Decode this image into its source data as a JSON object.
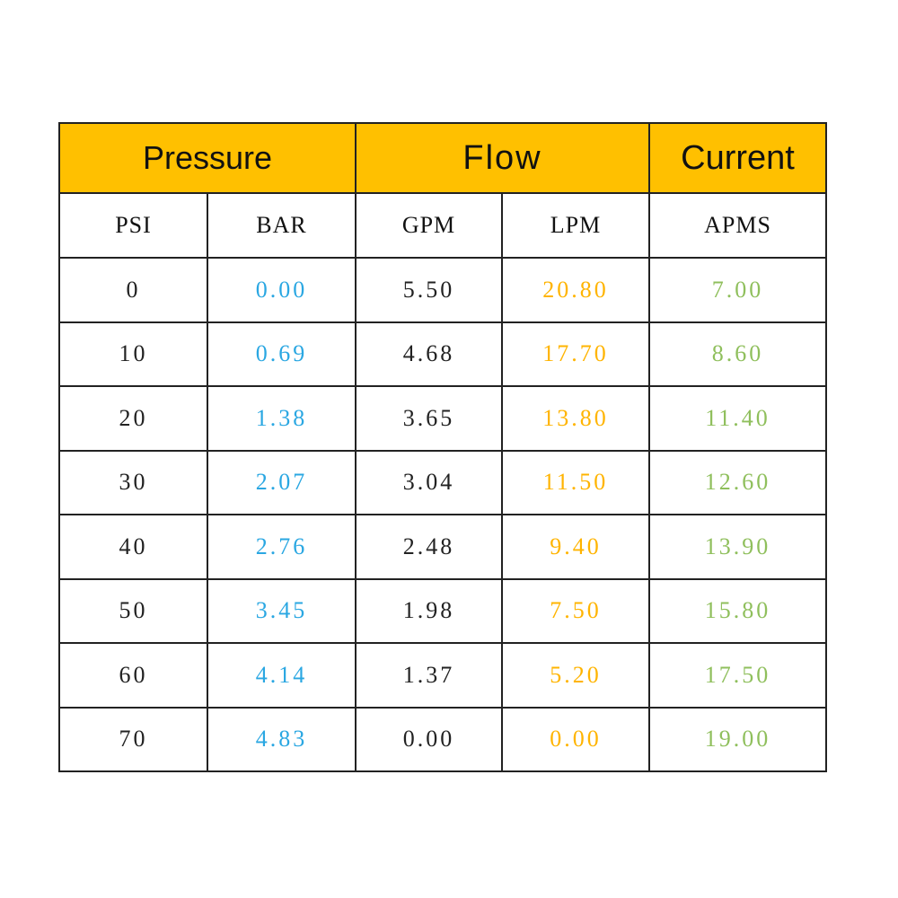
{
  "table": {
    "groups": [
      "Pressure",
      "Flow",
      "Current"
    ],
    "columns": [
      "PSI",
      "BAR",
      "GPM",
      "LPM",
      "APMS"
    ],
    "rows": [
      [
        "0",
        "0.00",
        "5.50",
        "20.80",
        "7.00"
      ],
      [
        "10",
        "0.69",
        "4.68",
        "17.70",
        "8.60"
      ],
      [
        "20",
        "1.38",
        "3.65",
        "13.80",
        "11.40"
      ],
      [
        "30",
        "2.07",
        "3.04",
        "11.50",
        "12.60"
      ],
      [
        "40",
        "2.76",
        "2.48",
        "9.40",
        "13.90"
      ],
      [
        "50",
        "3.45",
        "1.98",
        "7.50",
        "15.80"
      ],
      [
        "60",
        "4.14",
        "1.37",
        "5.20",
        "17.50"
      ],
      [
        "70",
        "4.83",
        "0.00",
        "0.00",
        "19.00"
      ]
    ]
  }
}
